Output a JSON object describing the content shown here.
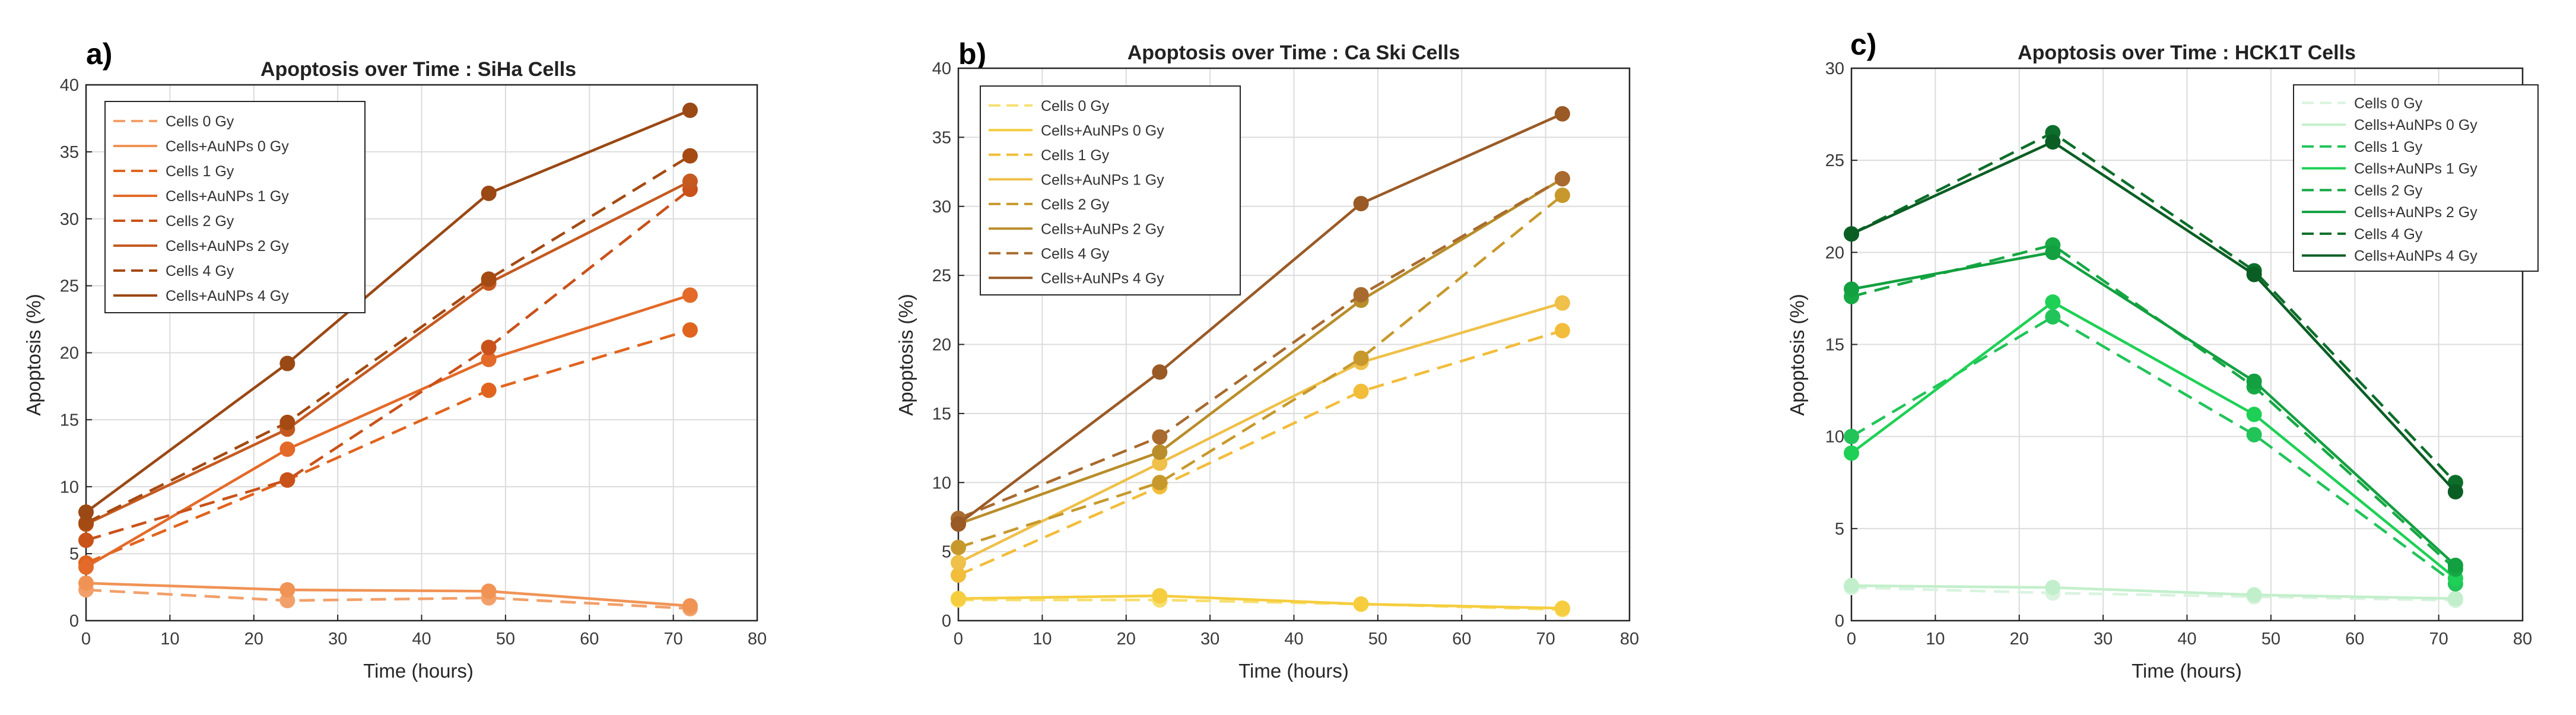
{
  "chart_data": [
    {
      "type": "line",
      "panel_label": "a)",
      "title": "Apoptosis over Time : SiHa Cells",
      "xlabel": "Time (hours)",
      "ylabel": "Apoptosis (%)",
      "xlim": [
        0,
        80
      ],
      "ylim": [
        0,
        40
      ],
      "xticks": [
        0,
        10,
        20,
        30,
        40,
        50,
        60,
        70,
        80
      ],
      "yticks": [
        0,
        5,
        10,
        15,
        20,
        25,
        30,
        35,
        40
      ],
      "grid": true,
      "legend_position": "top-left",
      "x": [
        0,
        24,
        48,
        72
      ],
      "series": [
        {
          "name": "Cells 0 Gy",
          "values": [
            2.3,
            1.5,
            1.7,
            0.9
          ],
          "color": "#f2a06a",
          "dash": true
        },
        {
          "name": "Cells+AuNPs 0 Gy",
          "values": [
            2.8,
            2.3,
            2.2,
            1.1
          ],
          "color": "#f09355",
          "dash": false
        },
        {
          "name": "Cells 1 Gy",
          "values": [
            4.3,
            10.5,
            17.2,
            21.7
          ],
          "color": "#e0641e",
          "dash": true
        },
        {
          "name": "Cells+AuNPs 1 Gy",
          "values": [
            4.0,
            12.8,
            19.5,
            24.3
          ],
          "color": "#e36a28",
          "dash": false
        },
        {
          "name": "Cells 2 Gy",
          "values": [
            6.0,
            10.5,
            20.4,
            32.2
          ],
          "color": "#c9521a",
          "dash": true
        },
        {
          "name": "Cells+AuNPs 2 Gy",
          "values": [
            7.2,
            14.3,
            25.2,
            32.8
          ],
          "color": "#c45a20",
          "dash": false
        },
        {
          "name": "Cells 4 Gy",
          "values": [
            7.3,
            14.8,
            25.5,
            34.7
          ],
          "color": "#a44a12",
          "dash": true
        },
        {
          "name": "Cells+AuNPs 4 Gy",
          "values": [
            8.1,
            19.2,
            31.9,
            38.1
          ],
          "color": "#9a4814",
          "dash": false
        }
      ]
    },
    {
      "type": "line",
      "panel_label": "b)",
      "title": "Apoptosis over Time : Ca Ski Cells",
      "xlabel": "Time (hours)",
      "ylabel": "Apoptosis (%)",
      "xlim": [
        0,
        80
      ],
      "ylim": [
        0,
        40
      ],
      "xticks": [
        0,
        10,
        20,
        30,
        40,
        50,
        60,
        70,
        80
      ],
      "yticks": [
        0,
        5,
        10,
        15,
        20,
        25,
        30,
        35,
        40
      ],
      "grid": true,
      "legend_position": "top-left",
      "x": [
        0,
        24,
        48,
        72
      ],
      "series": [
        {
          "name": "Cells 0 Gy",
          "values": [
            1.5,
            1.5,
            1.2,
            0.8
          ],
          "color": "#f7df70",
          "dash": true
        },
        {
          "name": "Cells+AuNPs 0 Gy",
          "values": [
            1.6,
            1.8,
            1.2,
            0.9
          ],
          "color": "#f5cd3e",
          "dash": false
        },
        {
          "name": "Cells 1 Gy",
          "values": [
            3.3,
            9.7,
            16.6,
            21.0
          ],
          "color": "#f2bd3a",
          "dash": true
        },
        {
          "name": "Cells+AuNPs 1 Gy",
          "values": [
            4.2,
            11.4,
            18.7,
            23.0
          ],
          "color": "#efc04a",
          "dash": false
        },
        {
          "name": "Cells 2 Gy",
          "values": [
            5.3,
            10.0,
            19.0,
            30.8
          ],
          "color": "#c7992c",
          "dash": true
        },
        {
          "name": "Cells+AuNPs 2 Gy",
          "values": [
            7.0,
            12.2,
            23.2,
            32.0
          ],
          "color": "#b88d2a",
          "dash": false
        },
        {
          "name": "Cells 4 Gy",
          "values": [
            7.4,
            13.3,
            23.6,
            32.0
          ],
          "color": "#a86a2e",
          "dash": true
        },
        {
          "name": "Cells+AuNPs 4 Gy",
          "values": [
            7.0,
            18.0,
            30.2,
            36.7
          ],
          "color": "#9a5a26",
          "dash": false
        }
      ]
    },
    {
      "type": "line",
      "panel_label": "c)",
      "title": "Apoptosis over Time : HCK1T Cells",
      "xlabel": "Time (hours)",
      "ylabel": "Apoptosis (%)",
      "xlim": [
        0,
        80
      ],
      "ylim": [
        0,
        30
      ],
      "xticks": [
        0,
        10,
        20,
        30,
        40,
        50,
        60,
        70,
        80
      ],
      "yticks": [
        0,
        5,
        10,
        15,
        20,
        25,
        30
      ],
      "grid": true,
      "legend_position": "top-right",
      "x": [
        0,
        24,
        48,
        72
      ],
      "series": [
        {
          "name": "Cells 0 Gy",
          "values": [
            1.8,
            1.5,
            1.3,
            1.1
          ],
          "color": "#d9f3df",
          "dash": true
        },
        {
          "name": "Cells+AuNPs 0 Gy",
          "values": [
            1.9,
            1.8,
            1.4,
            1.2
          ],
          "color": "#c2efcb",
          "dash": false
        },
        {
          "name": "Cells 1 Gy",
          "values": [
            10.0,
            16.5,
            10.1,
            2.0
          ],
          "color": "#22c45a",
          "dash": true
        },
        {
          "name": "Cells+AuNPs 1 Gy",
          "values": [
            9.1,
            17.3,
            11.2,
            2.3
          ],
          "color": "#1ed055",
          "dash": false
        },
        {
          "name": "Cells 2 Gy",
          "values": [
            17.6,
            20.4,
            12.7,
            2.8
          ],
          "color": "#16a844",
          "dash": true
        },
        {
          "name": "Cells+AuNPs 2 Gy",
          "values": [
            18.0,
            20.0,
            13.0,
            3.0
          ],
          "color": "#12a040",
          "dash": false
        },
        {
          "name": "Cells 4 Gy",
          "values": [
            21.0,
            26.5,
            19.0,
            7.5
          ],
          "color": "#0c6e2a",
          "dash": true
        },
        {
          "name": "Cells+AuNPs 4 Gy",
          "values": [
            21.0,
            26.0,
            18.8,
            7.0
          ],
          "color": "#0a5e24",
          "dash": false
        }
      ]
    }
  ]
}
